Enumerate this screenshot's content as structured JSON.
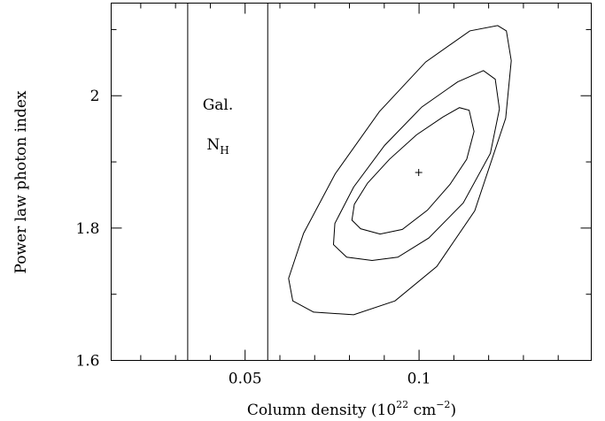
{
  "chart_data": {
    "type": "contour",
    "title": "",
    "xlabel_prefix": "Column density (10",
    "xlabel_exponent": "22",
    "xlabel_middle": " cm",
    "xlabel_unit_exponent": "−2",
    "xlabel_suffix": ")",
    "ylabel": "Power law photon index",
    "xlim": [
      0.0115,
      0.1495
    ],
    "ylim": [
      1.6,
      2.14
    ],
    "x_ticks": [
      {
        "value": 0.05,
        "label": "0.05"
      },
      {
        "value": 0.1,
        "label": "0.1"
      }
    ],
    "y_ticks": [
      {
        "value": 1.6,
        "label": "1.6"
      },
      {
        "value": 1.8,
        "label": "1.8"
      },
      {
        "value": 2.0,
        "label": "2"
      }
    ],
    "x_minor_ticks": [
      0.02,
      0.03,
      0.04,
      0.06,
      0.07,
      0.08,
      0.09,
      0.11,
      0.12,
      0.13,
      0.14
    ],
    "y_minor_ticks": [
      1.7,
      1.9,
      2.1
    ],
    "galactic_nh": {
      "lines": [
        0.0335,
        0.0565
      ],
      "label": "Gal.",
      "symbol": "N",
      "subscript": "H"
    },
    "best_fit": {
      "x": 0.0999,
      "y": 1.884
    },
    "contours": [
      {
        "name": "inner",
        "points": [
          [
            0.0888,
            1.791
          ],
          [
            0.0832,
            1.799
          ],
          [
            0.0807,
            1.812
          ],
          [
            0.0814,
            1.836
          ],
          [
            0.0852,
            1.868
          ],
          [
            0.0915,
            1.904
          ],
          [
            0.0993,
            1.941
          ],
          [
            0.1069,
            1.968
          ],
          [
            0.1116,
            1.982
          ],
          [
            0.1144,
            1.978
          ],
          [
            0.1158,
            1.946
          ],
          [
            0.1137,
            1.904
          ],
          [
            0.1089,
            1.866
          ],
          [
            0.1024,
            1.827
          ],
          [
            0.0952,
            1.798
          ],
          [
            0.0888,
            1.791
          ]
        ]
      },
      {
        "name": "middle",
        "points": [
          [
            0.0865,
            1.751
          ],
          [
            0.0792,
            1.756
          ],
          [
            0.0754,
            1.775
          ],
          [
            0.0758,
            1.807
          ],
          [
            0.0812,
            1.862
          ],
          [
            0.0901,
            1.925
          ],
          [
            0.1008,
            1.983
          ],
          [
            0.1111,
            2.021
          ],
          [
            0.1185,
            2.038
          ],
          [
            0.1219,
            2.025
          ],
          [
            0.1231,
            1.98
          ],
          [
            0.1205,
            1.913
          ],
          [
            0.1127,
            1.838
          ],
          [
            0.1028,
            1.785
          ],
          [
            0.0939,
            1.756
          ],
          [
            0.0865,
            1.751
          ]
        ]
      },
      {
        "name": "outer",
        "points": [
          [
            0.0697,
            1.673
          ],
          [
            0.0637,
            1.69
          ],
          [
            0.0625,
            1.724
          ],
          [
            0.0668,
            1.792
          ],
          [
            0.0759,
            1.882
          ],
          [
            0.0886,
            1.976
          ],
          [
            0.1019,
            2.051
          ],
          [
            0.1146,
            2.098
          ],
          [
            0.1226,
            2.106
          ],
          [
            0.1251,
            2.098
          ],
          [
            0.1265,
            2.053
          ],
          [
            0.1249,
            1.966
          ],
          [
            0.116,
            1.826
          ],
          [
            0.1051,
            1.742
          ],
          [
            0.0931,
            1.69
          ],
          [
            0.0812,
            1.669
          ],
          [
            0.0697,
            1.673
          ]
        ]
      }
    ]
  }
}
